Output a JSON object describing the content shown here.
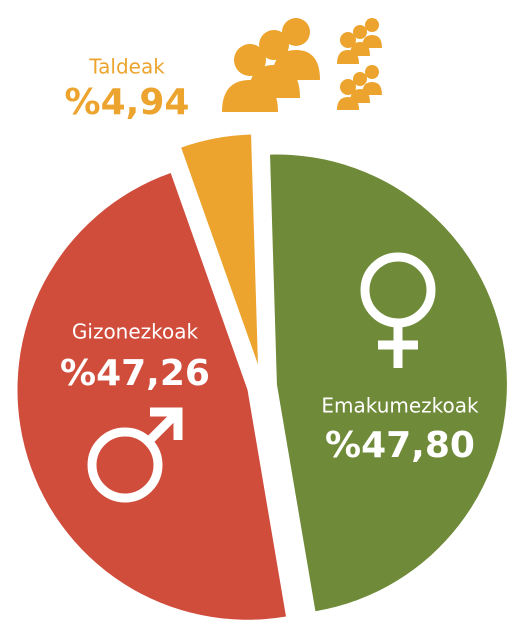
{
  "chart_data": {
    "type": "pie",
    "categories": [
      "Emakumezkoak",
      "Gizonezkoak",
      "Taldeak"
    ],
    "values": [
      47.8,
      47.26,
      4.94
    ],
    "value_labels": [
      "%47,80",
      "%47,26",
      "%4,94"
    ],
    "colors": [
      "#6f8a38",
      "#d04c3b",
      "#eca42e"
    ]
  }
}
